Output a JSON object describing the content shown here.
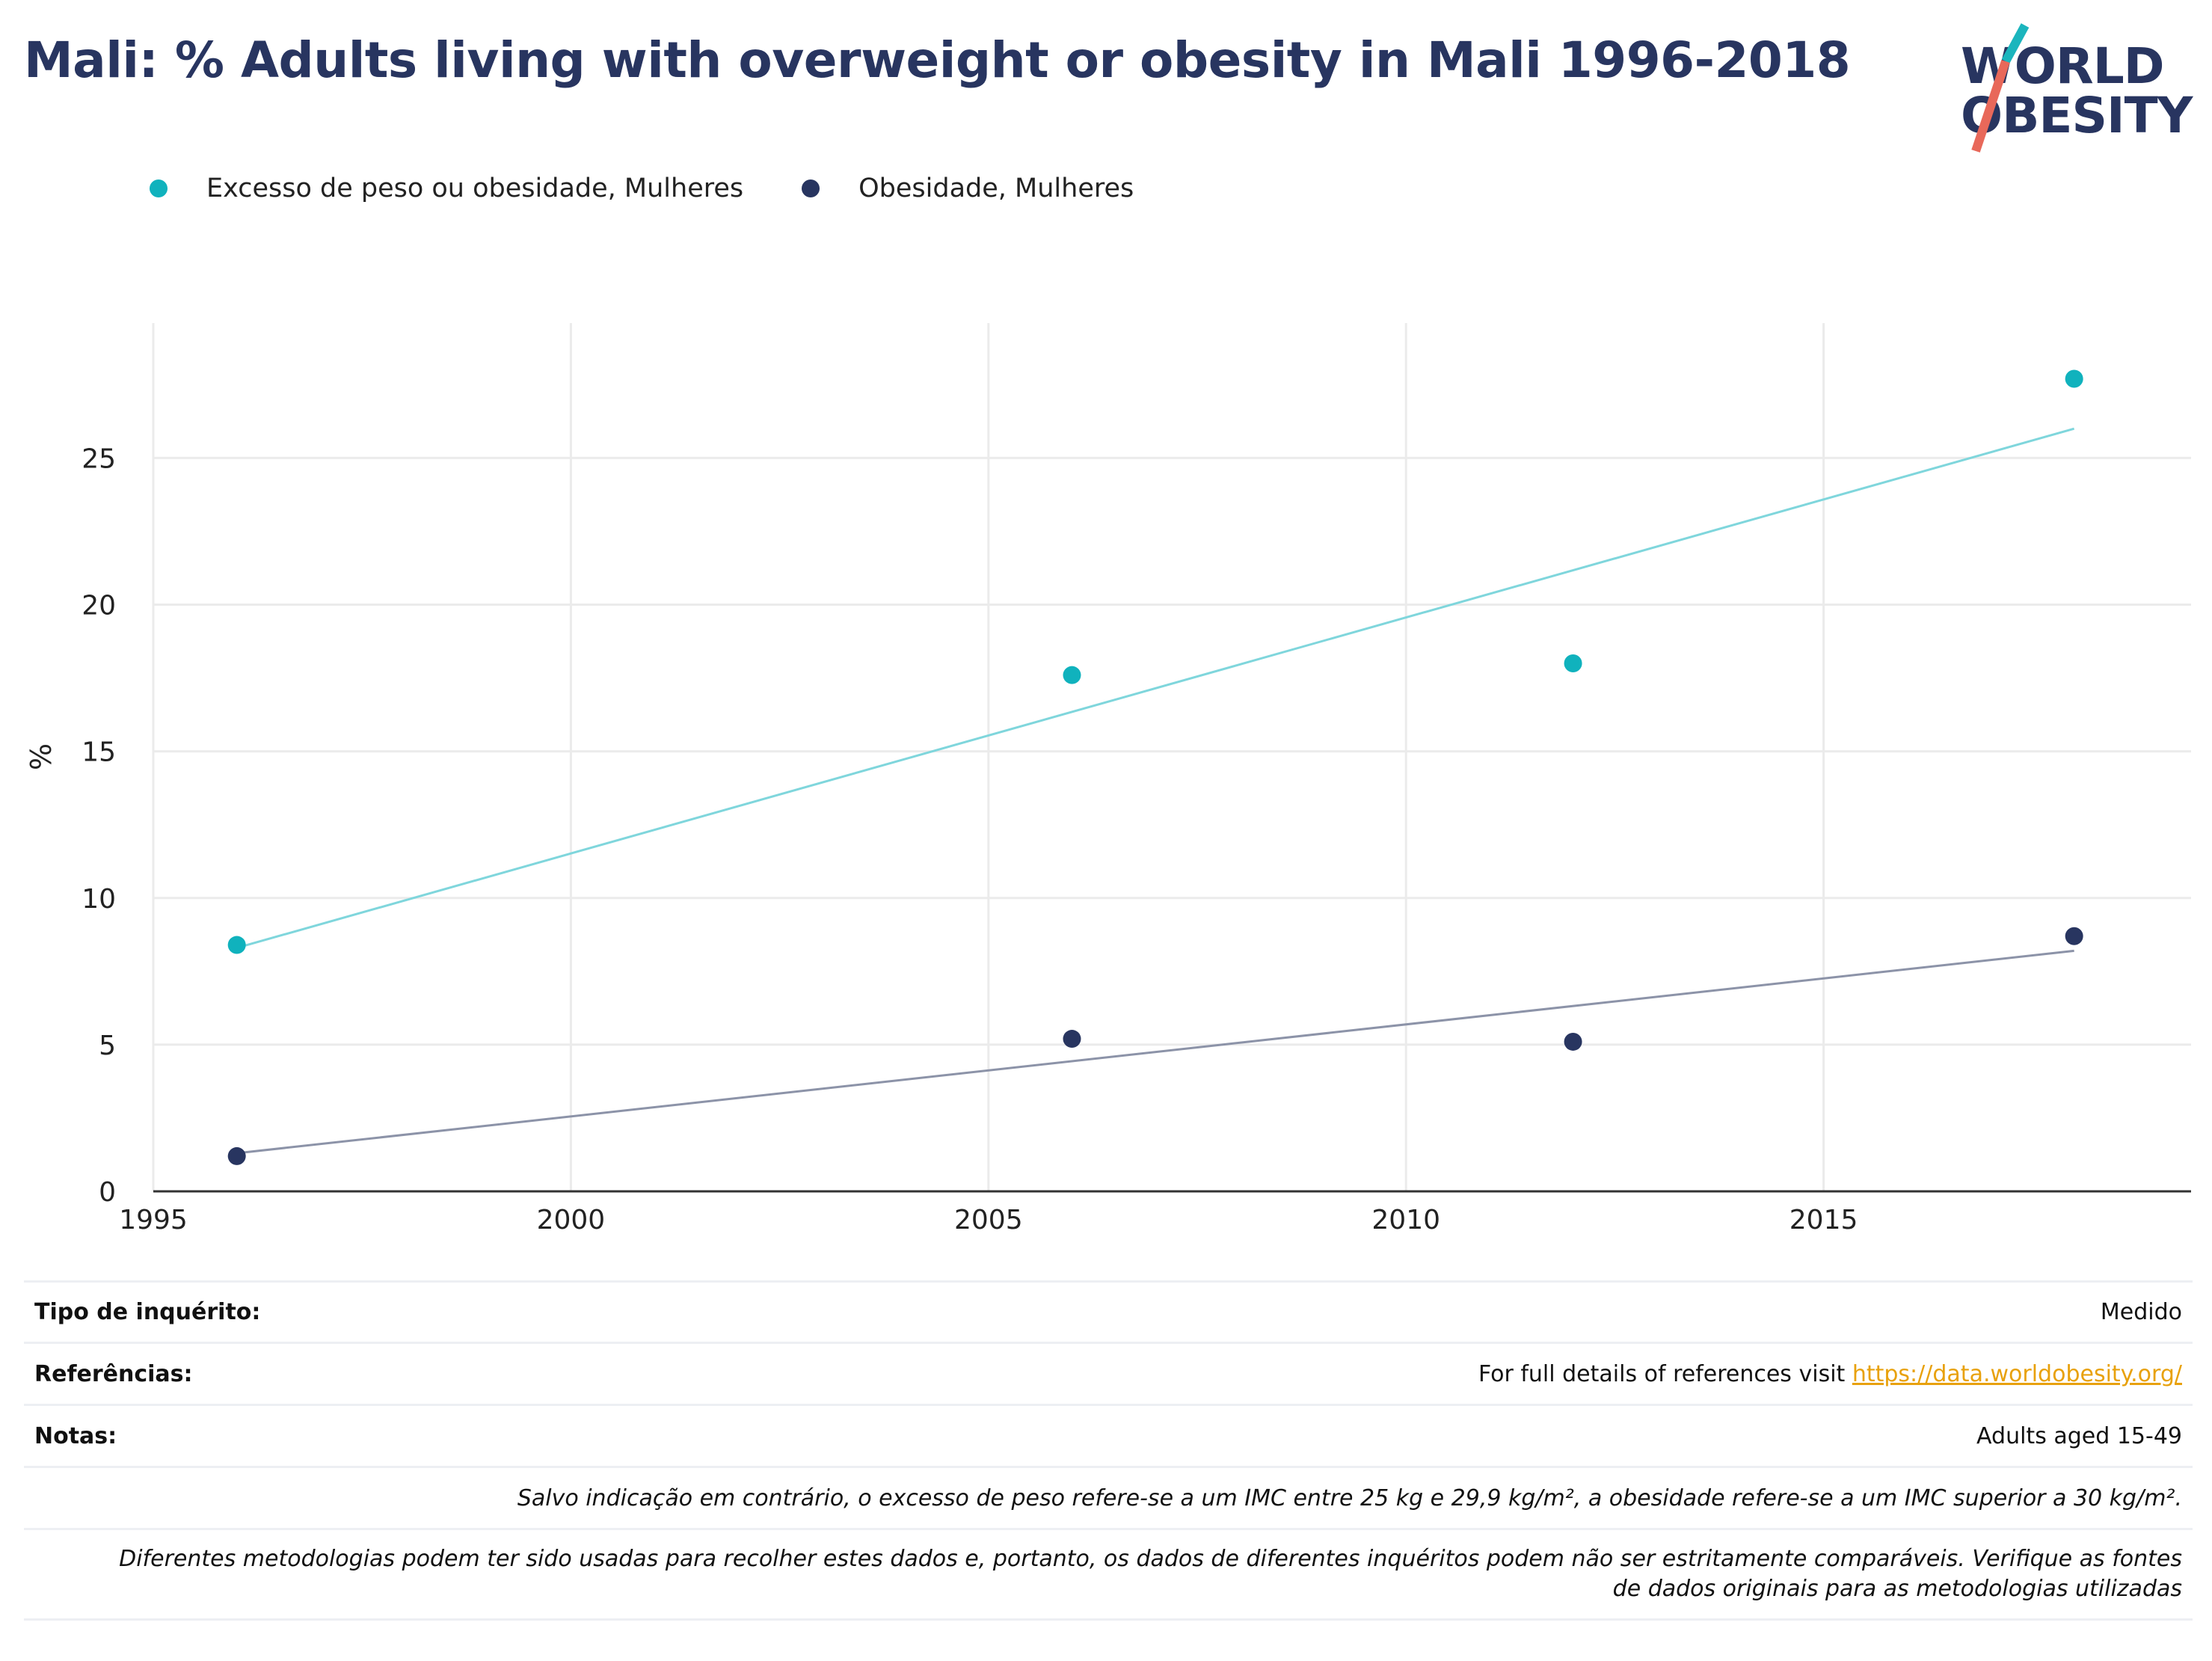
{
  "header": {
    "title": "Mali: % Adults living with overweight or obesity in Mali 1996-2018"
  },
  "logo": {
    "line1": "WORLD",
    "line2": "OBESITY",
    "accent_teal": "#1bb5bd",
    "accent_coral": "#e8685a"
  },
  "legend": [
    {
      "label": "Excesso de peso ou obesidade, Mulheres",
      "color": "#10b2bd"
    },
    {
      "label": "Obesidade, Mulheres",
      "color": "#283560"
    }
  ],
  "chart_data": {
    "type": "scatter",
    "title": "Mali: % Adults living with overweight or obesity in Mali 1996-2018",
    "xlabel": "",
    "ylabel": "%",
    "xlim": [
      1995,
      2019.4
    ],
    "ylim": [
      0,
      29.6
    ],
    "xticks": [
      1995,
      2000,
      2005,
      2010,
      2015
    ],
    "yticks": [
      0,
      5,
      10,
      15,
      20,
      25
    ],
    "grid": true,
    "legend_position": "top-left",
    "series": [
      {
        "name": "Excesso de peso ou obesidade, Mulheres",
        "color": "#10b2bd",
        "trend_color": "#7fd6dc",
        "x": [
          1996,
          2006,
          2012,
          2018
        ],
        "y": [
          8.4,
          17.6,
          18.0,
          27.7
        ],
        "trend": {
          "x": [
            1996,
            2018
          ],
          "y": [
            8.3,
            26.0
          ]
        }
      },
      {
        "name": "Obesidade, Mulheres",
        "color": "#283560",
        "trend_color": "#8c93a8",
        "x": [
          1996,
          2006,
          2012,
          2018
        ],
        "y": [
          1.2,
          5.2,
          5.1,
          8.7
        ],
        "trend": {
          "x": [
            1996,
            2018
          ],
          "y": [
            1.3,
            8.2
          ]
        }
      }
    ]
  },
  "info": {
    "survey_type_label": "Tipo de inquérito:",
    "survey_type_value": "Medido",
    "references_label": "Referências:",
    "references_text": "For full details of references visit ",
    "references_link": "https://data.worldobesity.org/",
    "notes_label": "Notas:",
    "notes_value": "Adults aged 15-49",
    "bmi_note": "Salvo indicação em contrário, o excesso de peso refere-se a um IMC entre 25 kg e 29,9 kg/m², a obesidade refere-se a um IMC superior a 30 kg/m².",
    "method_note_line1": "Diferentes metodologias podem ter sido usadas para recolher estes dados e, portanto, os dados de diferentes inquéritos podem não ser estritamente comparáveis. Verifique as fontes",
    "method_note_line2": "de dados originais para as metodologias utilizadas"
  }
}
